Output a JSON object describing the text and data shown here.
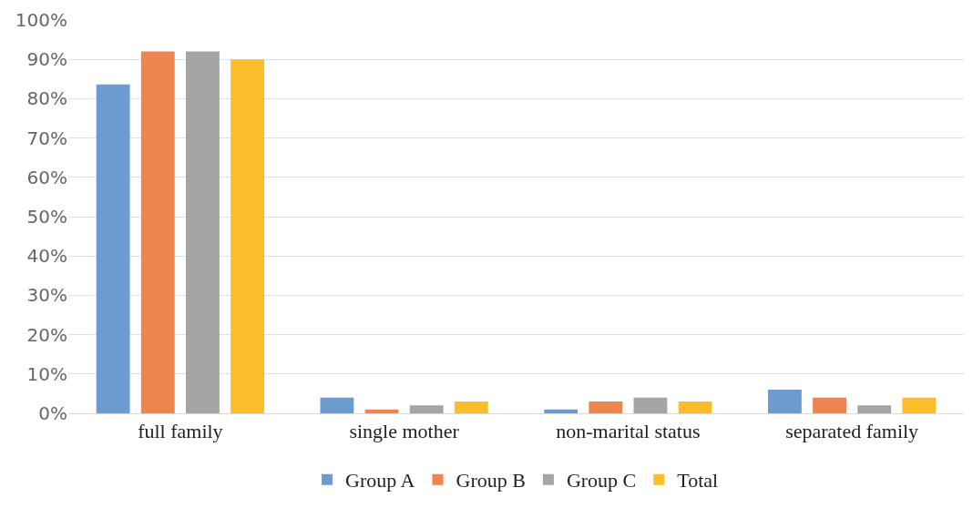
{
  "chart_data": {
    "type": "bar",
    "categories": [
      "full family",
      "single mother",
      "non-marital status",
      "separated family"
    ],
    "series": [
      {
        "name": "Group A",
        "color": "#6c9ccf",
        "values": [
          83.6,
          4,
          1,
          6
        ]
      },
      {
        "name": "Group B",
        "color": "#ee844e",
        "values": [
          92,
          1,
          3,
          4
        ]
      },
      {
        "name": "Group C",
        "color": "#a5a5a5",
        "values": [
          92,
          2,
          4,
          2
        ]
      },
      {
        "name": "Total",
        "color": "#fbbd2a",
        "values": [
          90,
          3,
          3,
          4
        ]
      }
    ],
    "ylim": [
      0,
      100
    ],
    "yticks": [
      {
        "value": 0,
        "label": "0%"
      },
      {
        "value": 10,
        "label": "10%"
      },
      {
        "value": 20,
        "label": "20%"
      },
      {
        "value": 30,
        "label": "30%"
      },
      {
        "value": 40,
        "label": "40%"
      },
      {
        "value": 50,
        "label": "50%"
      },
      {
        "value": 60,
        "label": "60%"
      },
      {
        "value": 70,
        "label": "70%"
      },
      {
        "value": 80,
        "label": "80%"
      },
      {
        "value": 90,
        "label": "90%"
      },
      {
        "value": 100,
        "label": "100%"
      }
    ],
    "grid": "y",
    "legend": "bottom"
  }
}
